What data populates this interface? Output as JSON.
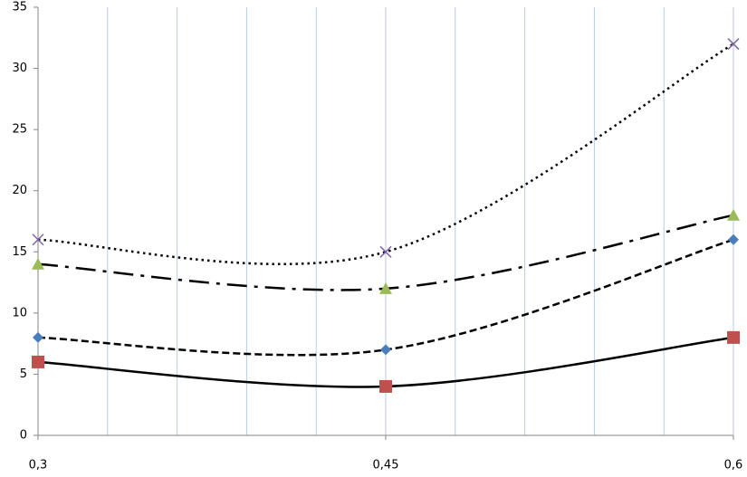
{
  "chart_data": {
    "type": "line",
    "x": [
      0.3,
      0.45,
      0.6
    ],
    "xlim": [
      0.3,
      0.6
    ],
    "xticks": [
      {
        "value": 0.3,
        "label": "0,3"
      },
      {
        "value": 0.45,
        "label": "0,45"
      },
      {
        "value": 0.6,
        "label": "0,6"
      }
    ],
    "xgrid": [
      0.33,
      0.36,
      0.39,
      0.42,
      0.45,
      0.48,
      0.51,
      0.54,
      0.57,
      0.6
    ],
    "ylim": [
      0,
      35
    ],
    "yticks": [
      0,
      5,
      10,
      15,
      20,
      25,
      30,
      35
    ],
    "grid_color": "#b9cde5",
    "smooth": true,
    "line_color": "#000000",
    "series": [
      {
        "color": "#4a7ebb",
        "marker": "diamond",
        "line_style": "dashed",
        "values": [
          8,
          7,
          16
        ]
      },
      {
        "color": "#c0504d",
        "marker": "square",
        "line_style": "solid",
        "values": [
          6,
          4,
          8
        ]
      },
      {
        "color": "#9bbb59",
        "marker": "triangle",
        "line_style": "dashdot",
        "values": [
          14,
          12,
          18
        ]
      },
      {
        "color": "#8064a2",
        "marker": "cross",
        "line_style": "dotted",
        "values": [
          16,
          15,
          32
        ]
      }
    ]
  }
}
